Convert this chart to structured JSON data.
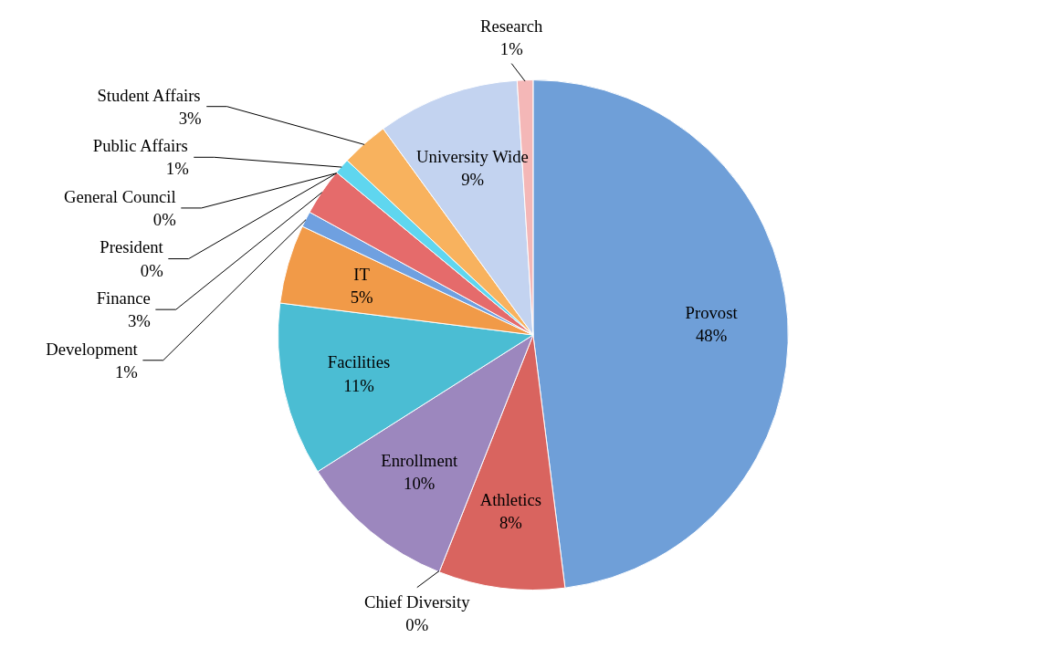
{
  "chart_data": {
    "type": "pie",
    "categories": [
      "Provost",
      "Athletics",
      "Chief Diversity",
      "Enrollment",
      "Facilities",
      "IT",
      "Development",
      "Finance",
      "General Council",
      "President",
      "Public Affairs",
      "Student Affairs",
      "University Wide",
      "Research"
    ],
    "values": [
      48,
      8,
      0,
      10,
      11,
      5,
      1,
      3,
      0,
      0,
      1,
      3,
      9,
      1
    ],
    "value_labels": [
      "48%",
      "8%",
      "0%",
      "10%",
      "11%",
      "5%",
      "1%",
      "3%",
      "0%",
      "0%",
      "1%",
      "3%",
      "9%",
      "1%"
    ],
    "colors": [
      "#6f9fd8",
      "#d9645f",
      "#9bbb59",
      "#9c87be",
      "#4bbdd3",
      "#f19a48",
      "#6fa0e0",
      "#e56b6b",
      "#a9c96b",
      "#b49bd0",
      "#5fd6ef",
      "#f8b25e",
      "#c3d3f0",
      "#f4b7b7"
    ]
  }
}
